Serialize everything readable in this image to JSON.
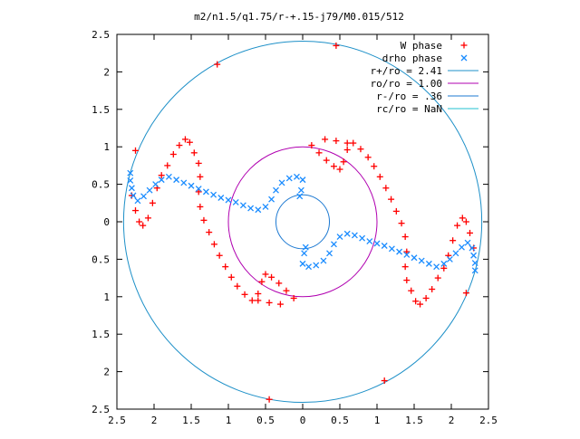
{
  "chart_data": {
    "type": "scatter",
    "title": "m2/n1.5/q1.75/r-+.15-j79/M0.015/512",
    "xlim": [
      -2.5,
      2.5
    ],
    "ylim": [
      -2.5,
      2.5
    ],
    "x_ticks": [
      {
        "value": -2.5,
        "label": "2.5"
      },
      {
        "value": -2,
        "label": "2"
      },
      {
        "value": -1.5,
        "label": "1.5"
      },
      {
        "value": -1,
        "label": "1"
      },
      {
        "value": -0.5,
        "label": "0.5"
      },
      {
        "value": 0,
        "label": "0"
      },
      {
        "value": 0.5,
        "label": "0.5"
      },
      {
        "value": 1,
        "label": "1"
      },
      {
        "value": 1.5,
        "label": "1.5"
      },
      {
        "value": 2,
        "label": "2"
      },
      {
        "value": 2.5,
        "label": "2.5"
      }
    ],
    "y_ticks": [
      {
        "value": 2.5,
        "label": "2.5"
      },
      {
        "value": 2,
        "label": "2"
      },
      {
        "value": 1.5,
        "label": "1.5"
      },
      {
        "value": 1,
        "label": "1"
      },
      {
        "value": 0.5,
        "label": "0.5"
      },
      {
        "value": 0,
        "label": "0"
      },
      {
        "value": -0.5,
        "label": "0.5"
      },
      {
        "value": -1,
        "label": "1"
      },
      {
        "value": -1.5,
        "label": "1.5"
      },
      {
        "value": -2,
        "label": "2"
      },
      {
        "value": -2.5,
        "label": "2.5"
      }
    ],
    "grid": false,
    "legend_position": "top-right",
    "series": [
      {
        "name": "W phase",
        "marker": "plus",
        "color": "#ff0000",
        "points": [
          [
            -2.25,
            0.95
          ],
          [
            -1.15,
            2.1
          ],
          [
            0.45,
            2.35
          ],
          [
            2.2,
            -0.95
          ],
          [
            1.1,
            -2.12
          ],
          [
            -0.45,
            -2.37
          ],
          [
            -2.3,
            0.35
          ],
          [
            -2.25,
            0.15
          ],
          [
            -2.2,
            0.0
          ],
          [
            -2.15,
            -0.05
          ],
          [
            -2.08,
            0.05
          ],
          [
            -2.02,
            0.25
          ],
          [
            -1.96,
            0.45
          ],
          [
            -1.9,
            0.62
          ],
          [
            -1.82,
            0.75
          ],
          [
            -1.74,
            0.9
          ],
          [
            -1.66,
            1.02
          ],
          [
            -1.58,
            1.1
          ],
          [
            -1.52,
            1.06
          ],
          [
            -1.46,
            0.92
          ],
          [
            -1.4,
            0.78
          ],
          [
            -1.38,
            0.6
          ],
          [
            -1.4,
            0.4
          ],
          [
            -1.38,
            0.2
          ],
          [
            -1.33,
            0.02
          ],
          [
            -1.26,
            -0.14
          ],
          [
            -1.19,
            -0.3
          ],
          [
            -1.12,
            -0.45
          ],
          [
            -1.04,
            -0.6
          ],
          [
            -0.96,
            -0.74
          ],
          [
            -0.88,
            -0.86
          ],
          [
            -0.78,
            -0.97
          ],
          [
            -0.68,
            -1.05
          ],
          [
            -0.6,
            -0.96
          ],
          [
            -0.55,
            -0.8
          ],
          [
            -0.5,
            -0.7
          ],
          [
            -0.42,
            -0.74
          ],
          [
            -0.32,
            -0.82
          ],
          [
            -0.22,
            -0.92
          ],
          [
            -0.12,
            -1.02
          ],
          [
            -0.3,
            -1.1
          ],
          [
            -0.45,
            -1.08
          ],
          [
            -0.6,
            -1.05
          ],
          [
            2.3,
            -0.35
          ],
          [
            2.25,
            -0.15
          ],
          [
            2.2,
            0.0
          ],
          [
            2.15,
            0.05
          ],
          [
            2.08,
            -0.05
          ],
          [
            2.02,
            -0.25
          ],
          [
            1.96,
            -0.45
          ],
          [
            1.9,
            -0.62
          ],
          [
            1.82,
            -0.75
          ],
          [
            1.74,
            -0.9
          ],
          [
            1.66,
            -1.02
          ],
          [
            1.58,
            -1.1
          ],
          [
            1.52,
            -1.06
          ],
          [
            1.46,
            -0.92
          ],
          [
            1.4,
            -0.78
          ],
          [
            1.38,
            -0.6
          ],
          [
            1.4,
            -0.4
          ],
          [
            1.38,
            -0.2
          ],
          [
            1.33,
            -0.02
          ],
          [
            1.26,
            0.14
          ],
          [
            1.19,
            0.3
          ],
          [
            1.12,
            0.45
          ],
          [
            1.04,
            0.6
          ],
          [
            0.96,
            0.74
          ],
          [
            0.88,
            0.86
          ],
          [
            0.78,
            0.97
          ],
          [
            0.68,
            1.05
          ],
          [
            0.6,
            0.96
          ],
          [
            0.55,
            0.8
          ],
          [
            0.5,
            0.7
          ],
          [
            0.42,
            0.74
          ],
          [
            0.32,
            0.82
          ],
          [
            0.22,
            0.92
          ],
          [
            0.12,
            1.02
          ],
          [
            0.3,
            1.1
          ],
          [
            0.45,
            1.08
          ],
          [
            0.6,
            1.05
          ]
        ]
      },
      {
        "name": "drho phase",
        "marker": "cross",
        "color": "#1a8cff",
        "points": [
          [
            -2.32,
            0.65
          ],
          [
            -2.32,
            0.55
          ],
          [
            -2.3,
            0.45
          ],
          [
            -2.28,
            0.35
          ],
          [
            -2.22,
            0.28
          ],
          [
            -2.14,
            0.34
          ],
          [
            -2.06,
            0.42
          ],
          [
            -1.98,
            0.5
          ],
          [
            -1.9,
            0.56
          ],
          [
            -1.8,
            0.6
          ],
          [
            -1.7,
            0.56
          ],
          [
            -1.6,
            0.52
          ],
          [
            -1.5,
            0.48
          ],
          [
            -1.4,
            0.44
          ],
          [
            -1.3,
            0.4
          ],
          [
            -1.2,
            0.36
          ],
          [
            -1.1,
            0.32
          ],
          [
            -1.0,
            0.29
          ],
          [
            -0.9,
            0.26
          ],
          [
            -0.8,
            0.22
          ],
          [
            -0.7,
            0.18
          ],
          [
            -0.6,
            0.16
          ],
          [
            -0.5,
            0.2
          ],
          [
            -0.42,
            0.3
          ],
          [
            -0.36,
            0.42
          ],
          [
            -0.28,
            0.52
          ],
          [
            -0.18,
            0.58
          ],
          [
            -0.08,
            0.6
          ],
          [
            0.0,
            0.56
          ],
          [
            -0.02,
            0.42
          ],
          [
            -0.04,
            0.34
          ],
          [
            2.32,
            -0.65
          ],
          [
            2.32,
            -0.55
          ],
          [
            2.3,
            -0.45
          ],
          [
            2.28,
            -0.35
          ],
          [
            2.22,
            -0.28
          ],
          [
            2.14,
            -0.34
          ],
          [
            2.06,
            -0.42
          ],
          [
            1.98,
            -0.5
          ],
          [
            1.9,
            -0.56
          ],
          [
            1.8,
            -0.6
          ],
          [
            1.7,
            -0.56
          ],
          [
            1.6,
            -0.52
          ],
          [
            1.5,
            -0.48
          ],
          [
            1.4,
            -0.44
          ],
          [
            1.3,
            -0.4
          ],
          [
            1.2,
            -0.36
          ],
          [
            1.1,
            -0.32
          ],
          [
            1.0,
            -0.29
          ],
          [
            0.9,
            -0.26
          ],
          [
            0.8,
            -0.22
          ],
          [
            0.7,
            -0.18
          ],
          [
            0.6,
            -0.16
          ],
          [
            0.5,
            -0.2
          ],
          [
            0.42,
            -0.3
          ],
          [
            0.36,
            -0.42
          ],
          [
            0.28,
            -0.52
          ],
          [
            0.18,
            -0.58
          ],
          [
            0.08,
            -0.6
          ],
          [
            0.0,
            -0.56
          ],
          [
            0.02,
            -0.42
          ],
          [
            0.04,
            -0.34
          ]
        ]
      }
    ],
    "circles": [
      {
        "label": "r+/ro = 2.41",
        "radius": 2.41,
        "color": "#1e90c8"
      },
      {
        "label": "ro/ro = 1.00",
        "radius": 1.0,
        "color": "#b000b0"
      },
      {
        "label": "r-/ro = .36",
        "radius": 0.36,
        "color": "#1e7ad2"
      },
      {
        "label": "rc/ro = NaN",
        "radius": null,
        "color": "#20c0d0"
      }
    ]
  }
}
